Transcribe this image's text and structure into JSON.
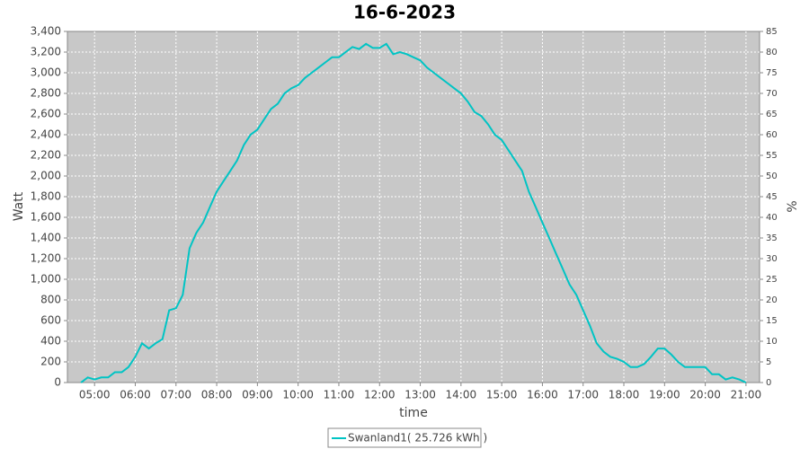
{
  "chart_data": {
    "type": "line",
    "title": "16-6-2023",
    "x_label": "time",
    "y_label": "Watt",
    "y2_label": "%",
    "x": [
      "04:40",
      "04:50",
      "05:00",
      "05:10",
      "05:20",
      "05:30",
      "05:40",
      "05:50",
      "06:00",
      "06:10",
      "06:20",
      "06:30",
      "06:40",
      "06:50",
      "07:00",
      "07:10",
      "07:20",
      "07:30",
      "07:40",
      "07:50",
      "08:00",
      "08:10",
      "08:20",
      "08:30",
      "08:40",
      "08:50",
      "09:00",
      "09:10",
      "09:20",
      "09:30",
      "09:40",
      "09:50",
      "10:00",
      "10:10",
      "10:20",
      "10:30",
      "10:40",
      "10:50",
      "11:00",
      "11:10",
      "11:20",
      "11:30",
      "11:40",
      "11:50",
      "12:00",
      "12:10",
      "12:20",
      "12:30",
      "12:40",
      "12:50",
      "13:00",
      "13:10",
      "13:20",
      "13:30",
      "13:40",
      "13:50",
      "14:00",
      "14:10",
      "14:20",
      "14:30",
      "14:40",
      "14:50",
      "15:00",
      "15:10",
      "15:20",
      "15:30",
      "15:40",
      "15:50",
      "16:00",
      "16:10",
      "16:20",
      "16:30",
      "16:40",
      "16:50",
      "17:00",
      "17:10",
      "17:20",
      "17:30",
      "17:40",
      "17:50",
      "18:00",
      "18:10",
      "18:20",
      "18:30",
      "18:40",
      "18:50",
      "19:00",
      "19:10",
      "19:20",
      "19:30",
      "19:40",
      "19:50",
      "20:00",
      "20:10",
      "20:20",
      "20:30",
      "20:40",
      "20:50",
      "21:00"
    ],
    "series": [
      {
        "name": "Swanland1( 25.726 kWh )",
        "color": "#00c4c4",
        "values": [
          0,
          50,
          30,
          50,
          50,
          100,
          100,
          150,
          250,
          380,
          330,
          380,
          420,
          700,
          720,
          850,
          1300,
          1450,
          1550,
          1700,
          1850,
          1950,
          2050,
          2150,
          2300,
          2400,
          2450,
          2550,
          2650,
          2700,
          2800,
          2850,
          2880,
          2950,
          3000,
          3050,
          3100,
          3150,
          3150,
          3200,
          3250,
          3230,
          3280,
          3240,
          3240,
          3280,
          3180,
          3200,
          3180,
          3150,
          3120,
          3050,
          3000,
          2950,
          2900,
          2850,
          2800,
          2720,
          2620,
          2580,
          2500,
          2400,
          2350,
          2250,
          2150,
          2050,
          1850,
          1700,
          1550,
          1400,
          1250,
          1100,
          950,
          850,
          700,
          550,
          380,
          300,
          250,
          230,
          200,
          150,
          150,
          180,
          250,
          330,
          330,
          270,
          200,
          150,
          150,
          150,
          150,
          80,
          80,
          30,
          50,
          30,
          0
        ]
      }
    ],
    "xlim": [
      "04:20",
      "21:20"
    ],
    "xticks": [
      "05:00",
      "06:00",
      "07:00",
      "08:00",
      "09:00",
      "10:00",
      "11:00",
      "12:00",
      "13:00",
      "14:00",
      "15:00",
      "16:00",
      "17:00",
      "18:00",
      "19:00",
      "20:00",
      "21:00"
    ],
    "ylim": [
      0,
      3400
    ],
    "yticks": [
      0,
      200,
      400,
      600,
      800,
      {
        "value": 1000,
        "label": "1,000"
      },
      {
        "value": 1200,
        "label": "1,200"
      },
      {
        "value": 1400,
        "label": "1,400"
      },
      {
        "value": 1600,
        "label": "1,600"
      },
      {
        "value": 1800,
        "label": "1,800"
      },
      {
        "value": 2000,
        "label": "2,000"
      },
      {
        "value": 2200,
        "label": "2,200"
      },
      {
        "value": 2400,
        "label": "2,400"
      },
      {
        "value": 2600,
        "label": "2,600"
      },
      {
        "value": 2800,
        "label": "2,800"
      },
      {
        "value": 3000,
        "label": "3,000"
      },
      {
        "value": 3200,
        "label": "3,200"
      },
      {
        "value": 3400,
        "label": "3,400"
      }
    ],
    "y2lim": [
      0,
      85
    ],
    "y2ticks": [
      0,
      5,
      10,
      15,
      20,
      25,
      30,
      35,
      40,
      45,
      50,
      55,
      60,
      65,
      70,
      75,
      80,
      85
    ],
    "grid": true
  }
}
